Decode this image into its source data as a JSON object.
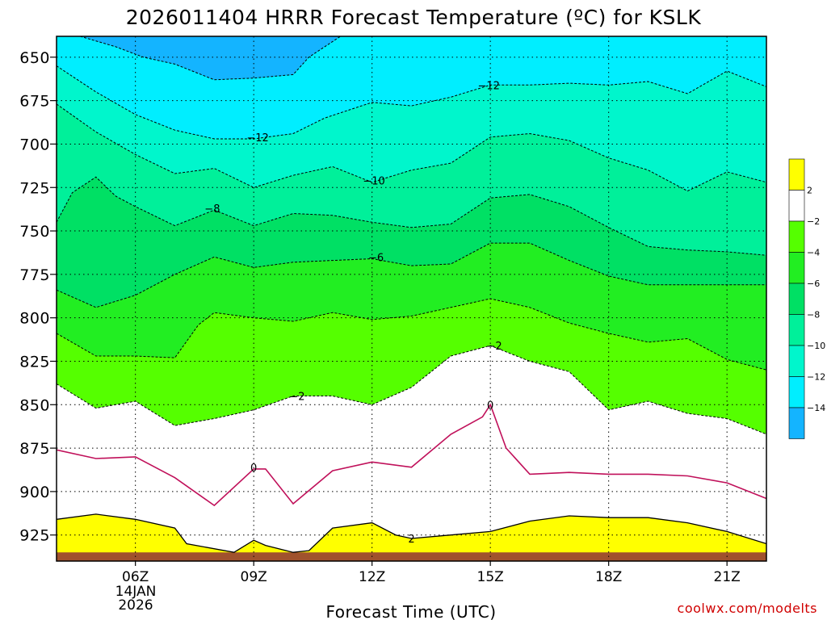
{
  "chart_data": {
    "type": "time-height contour",
    "title": "2026011404 HRRR Forecast Temperature (ºC) for KSLK",
    "xlabel": "Forecast Time (UTC)",
    "ylabel": "",
    "credit": "coolwx.com/modelts",
    "date_line1": "14JAN",
    "date_line2": "2026",
    "x_range_hours": [
      4,
      22
    ],
    "y_range_mb": [
      940,
      638
    ],
    "x_ticks": [
      {
        "hour": 6,
        "label": "06Z"
      },
      {
        "hour": 9,
        "label": "09Z"
      },
      {
        "hour": 12,
        "label": "12Z"
      },
      {
        "hour": 15,
        "label": "15Z"
      },
      {
        "hour": 18,
        "label": "18Z"
      },
      {
        "hour": 21,
        "label": "21Z"
      }
    ],
    "y_ticks": [
      650,
      675,
      700,
      725,
      750,
      775,
      800,
      825,
      850,
      875,
      900,
      925
    ],
    "ground_top_mb": 935,
    "bands": [
      {
        "range": "2 and above",
        "color": "#ffff00"
      },
      {
        "range": "-2 to 2",
        "color": "#ffffff"
      },
      {
        "range": "-4 to -2",
        "color": "#55ff00"
      },
      {
        "range": "-6 to -4",
        "color": "#22ee22"
      },
      {
        "range": "-8 to -6",
        "color": "#00e064"
      },
      {
        "range": "-10 to -8",
        "color": "#00f09a"
      },
      {
        "range": "-12 to -10",
        "color": "#00f6cc"
      },
      {
        "range": "-14 to -12",
        "color": "#00eeff"
      },
      {
        "range": "below -14",
        "color": "#14b4ff"
      }
    ],
    "contours": [
      {
        "level": -14,
        "style": "dashed",
        "label": "",
        "points": [
          [
            4.6,
            638
          ],
          [
            5.5,
            644
          ],
          [
            6.2,
            650
          ],
          [
            7,
            654
          ],
          [
            8,
            663
          ],
          [
            9,
            662
          ],
          [
            10,
            660
          ],
          [
            10.4,
            650
          ],
          [
            11.2,
            638
          ]
        ]
      },
      {
        "level": -12,
        "style": "dashed",
        "label": "-12",
        "points": [
          [
            4,
            655
          ],
          [
            5,
            670
          ],
          [
            6,
            683
          ],
          [
            7,
            692
          ],
          [
            8,
            697
          ],
          [
            9,
            697
          ],
          [
            10,
            694
          ],
          [
            10.8,
            685
          ],
          [
            12,
            676
          ],
          [
            13,
            678
          ],
          [
            14,
            673
          ],
          [
            15,
            666
          ],
          [
            16,
            666
          ],
          [
            17,
            665
          ],
          [
            18,
            666
          ],
          [
            19,
            664
          ],
          [
            20,
            671
          ],
          [
            21,
            658
          ],
          [
            22,
            667
          ]
        ]
      },
      {
        "level": -10,
        "style": "dashed",
        "label": "-10",
        "points": [
          [
            4,
            677
          ],
          [
            5,
            693
          ],
          [
            6,
            706
          ],
          [
            7,
            717
          ],
          [
            8,
            714
          ],
          [
            9,
            725
          ],
          [
            10,
            718
          ],
          [
            11,
            713
          ],
          [
            12,
            722
          ],
          [
            13,
            715
          ],
          [
            14,
            711
          ],
          [
            15,
            696
          ],
          [
            16,
            694
          ],
          [
            17,
            698
          ],
          [
            18,
            708
          ],
          [
            19,
            715
          ],
          [
            20,
            727
          ],
          [
            21,
            716
          ],
          [
            22,
            722
          ]
        ]
      },
      {
        "level": -8,
        "style": "dashed",
        "label": "-8",
        "points": [
          [
            4,
            745
          ],
          [
            4.4,
            728
          ],
          [
            5,
            719
          ],
          [
            5.5,
            730
          ],
          [
            6,
            736
          ],
          [
            7,
            747
          ],
          [
            8,
            738
          ],
          [
            9,
            747
          ],
          [
            10,
            740
          ],
          [
            11,
            741
          ],
          [
            12,
            745
          ],
          [
            13,
            748
          ],
          [
            14,
            746
          ],
          [
            15,
            731
          ],
          [
            16,
            729
          ],
          [
            17,
            736
          ],
          [
            18,
            748
          ],
          [
            19,
            759
          ],
          [
            20,
            761
          ],
          [
            21,
            762
          ],
          [
            22,
            764
          ]
        ]
      },
      {
        "level": -6,
        "style": "dashed",
        "label": "-6",
        "points": [
          [
            4,
            784
          ],
          [
            5,
            794
          ],
          [
            6,
            787
          ],
          [
            7,
            775
          ],
          [
            8,
            765
          ],
          [
            9,
            771
          ],
          [
            10,
            768
          ],
          [
            11,
            767
          ],
          [
            12,
            766
          ],
          [
            13,
            770
          ],
          [
            14,
            769
          ],
          [
            15,
            757
          ],
          [
            16,
            757
          ],
          [
            17,
            767
          ],
          [
            18,
            776
          ],
          [
            19,
            781
          ],
          [
            20,
            781
          ],
          [
            21,
            781
          ],
          [
            22,
            781
          ]
        ]
      },
      {
        "level": -4,
        "style": "dashed",
        "label": "",
        "points": [
          [
            4,
            809
          ],
          [
            5,
            822
          ],
          [
            6,
            822
          ],
          [
            7,
            823
          ],
          [
            7.6,
            804
          ],
          [
            8,
            797
          ],
          [
            9,
            800
          ],
          [
            10,
            802
          ],
          [
            11,
            797
          ],
          [
            12,
            801
          ],
          [
            13,
            799
          ],
          [
            14,
            794
          ],
          [
            15,
            789
          ],
          [
            16,
            794
          ],
          [
            17,
            803
          ],
          [
            18,
            809
          ],
          [
            19,
            814
          ],
          [
            20,
            812
          ],
          [
            21,
            824
          ],
          [
            22,
            830
          ]
        ]
      },
      {
        "level": -2,
        "style": "dashed",
        "label": "-2",
        "points": [
          [
            4,
            838
          ],
          [
            5,
            852
          ],
          [
            6,
            848
          ],
          [
            7,
            862
          ],
          [
            8,
            858
          ],
          [
            9,
            853
          ],
          [
            10,
            845
          ],
          [
            11,
            845
          ],
          [
            12,
            850
          ],
          [
            13,
            840
          ],
          [
            14,
            822
          ],
          [
            15,
            816
          ],
          [
            16,
            825
          ],
          [
            17,
            831
          ],
          [
            18,
            853
          ],
          [
            19,
            848
          ],
          [
            20,
            855
          ],
          [
            21,
            858
          ],
          [
            22,
            867
          ]
        ]
      },
      {
        "level": 0,
        "style": "solid",
        "color": "#c0105a",
        "label": "0",
        "points": [
          [
            4,
            876
          ],
          [
            5,
            881
          ],
          [
            6,
            880
          ],
          [
            7,
            892
          ],
          [
            8,
            908
          ],
          [
            9,
            887
          ],
          [
            9.3,
            887
          ],
          [
            10,
            907
          ],
          [
            11,
            888
          ],
          [
            12,
            883
          ],
          [
            13,
            886
          ],
          [
            14,
            867
          ],
          [
            14.8,
            857
          ],
          [
            15,
            850
          ],
          [
            15.4,
            875
          ],
          [
            16,
            890
          ],
          [
            17,
            889
          ],
          [
            18,
            890
          ],
          [
            19,
            890
          ],
          [
            20,
            891
          ],
          [
            21,
            895
          ],
          [
            22,
            904
          ]
        ]
      },
      {
        "level": 2,
        "style": "solid",
        "label": "2",
        "points": [
          [
            4,
            916
          ],
          [
            5,
            913
          ],
          [
            6,
            916
          ],
          [
            7,
            921
          ],
          [
            7.3,
            930
          ],
          [
            8.5,
            935
          ],
          [
            9,
            928
          ],
          [
            9.3,
            931
          ],
          [
            10,
            935
          ],
          [
            10.4,
            934
          ],
          [
            11,
            921
          ],
          [
            12,
            918
          ],
          [
            12.6,
            925
          ],
          [
            13,
            927
          ],
          [
            14,
            925
          ],
          [
            15,
            923
          ],
          [
            16,
            917
          ],
          [
            17,
            914
          ],
          [
            18,
            915
          ],
          [
            19,
            915
          ],
          [
            20,
            918
          ],
          [
            21,
            923
          ],
          [
            22,
            930
          ]
        ]
      }
    ],
    "contour_labels": [
      {
        "text": "-12",
        "hour": 14.96,
        "mb": 666
      },
      {
        "text": "-12",
        "hour": 9.1,
        "mb": 696
      },
      {
        "text": "-10",
        "hour": 12.05,
        "mb": 721
      },
      {
        "text": "-8",
        "hour": 7.95,
        "mb": 737
      },
      {
        "text": "-6",
        "hour": 12.1,
        "mb": 765
      },
      {
        "text": "-2",
        "hour": 15.1,
        "mb": 816
      },
      {
        "text": "-2",
        "hour": 10.1,
        "mb": 845
      },
      {
        "text": "0",
        "hour": 15.0,
        "mb": 850
      },
      {
        "text": "0",
        "hour": 9.0,
        "mb": 886
      },
      {
        "text": "2",
        "hour": 13.0,
        "mb": 927
      }
    ],
    "legend": {
      "ticks": [
        "2",
        "−2",
        "−4",
        "−6",
        "−8",
        "−10",
        "−12",
        "−14"
      ],
      "colors": [
        "#ffff00",
        "#ffffff",
        "#55ff00",
        "#22ee22",
        "#00e064",
        "#00f09a",
        "#00f6cc",
        "#00eeff",
        "#14b4ff"
      ]
    }
  }
}
